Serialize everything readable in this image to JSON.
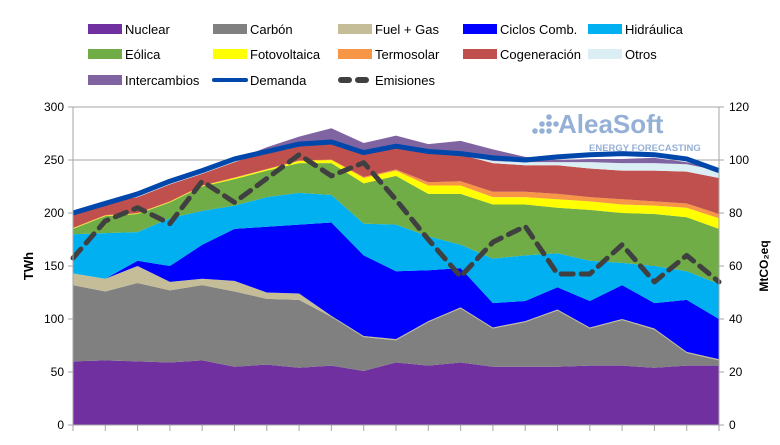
{
  "chart_data": {
    "type": "area",
    "stacked": true,
    "title": "",
    "ylabel": "TWh",
    "y2label": "MtCO₂eq",
    "ylim": [
      0,
      300
    ],
    "y2lim": [
      0,
      120
    ],
    "yticks": [
      "0",
      "50",
      "100",
      "150",
      "200",
      "250",
      "300"
    ],
    "y2ticks": [
      "0",
      "20",
      "40",
      "60",
      "80",
      "100",
      "120"
    ],
    "grid": true,
    "legend_position": "top",
    "point_count": 21,
    "series": [
      {
        "name": "Nuclear",
        "color": "#7030a0",
        "values": [
          60,
          61,
          60,
          59,
          61,
          55,
          57,
          54,
          56,
          51,
          59,
          56,
          59,
          55,
          55,
          55,
          56,
          56,
          54,
          56,
          56
        ]
      },
      {
        "name": "Carbón",
        "color": "#808080",
        "values": [
          72,
          65,
          74,
          68,
          71,
          71,
          62,
          64,
          46,
          32,
          21,
          41,
          51,
          36,
          42,
          53,
          35,
          43,
          36,
          12,
          5
        ]
      },
      {
        "name": "Fuel + Gas",
        "color": "#c4bd97",
        "values": [
          11,
          12,
          16,
          8,
          6,
          10,
          6,
          6,
          1,
          1,
          1,
          1,
          1,
          1,
          1,
          1,
          1,
          1,
          1,
          1,
          1
        ]
      },
      {
        "name": "Ciclos Comb.",
        "color": "#0000ff",
        "values": [
          0,
          0,
          5,
          15,
          32,
          49,
          62,
          65,
          88,
          76,
          64,
          48,
          37,
          23,
          19,
          21,
          25,
          32,
          24,
          49,
          38
        ]
      },
      {
        "name": "Hidráulica",
        "color": "#00b0f0",
        "values": [
          37,
          43,
          27,
          45,
          32,
          22,
          28,
          30,
          26,
          30,
          44,
          32,
          22,
          42,
          43,
          32,
          38,
          21,
          35,
          27,
          33
        ]
      },
      {
        "name": "Eólica",
        "color": "#70ad47",
        "values": [
          5,
          16,
          17,
          15,
          23,
          25,
          25,
          28,
          30,
          38,
          46,
          40,
          48,
          51,
          48,
          43,
          48,
          47,
          49,
          51,
          52
        ]
      },
      {
        "name": "Fotovoltaica",
        "color": "#ffff00",
        "values": [
          0.5,
          0.5,
          0.5,
          0.5,
          0.5,
          1,
          1,
          2,
          3,
          5,
          5,
          8,
          8,
          7,
          7,
          8,
          8,
          8,
          8,
          9,
          10
        ]
      },
      {
        "name": "Termosolar",
        "color": "#f79646",
        "values": [
          0.5,
          0.5,
          0.5,
          0.5,
          0.5,
          0.5,
          0.5,
          0.5,
          0.5,
          1,
          1,
          3,
          4,
          5,
          5,
          5,
          4,
          5,
          4,
          4,
          4
        ]
      },
      {
        "name": "Cogeneración",
        "color": "#c0504d",
        "values": [
          14,
          12,
          15,
          16,
          11,
          14.5,
          16.5,
          14.5,
          14.5,
          22,
          20,
          27,
          25,
          27,
          25,
          27,
          27,
          27,
          29,
          30,
          34
        ]
      },
      {
        "name": "Otros",
        "color": "#daeef3",
        "values": [
          2,
          2,
          3,
          3,
          3,
          2,
          2,
          2,
          2,
          2,
          2,
          2,
          1,
          2,
          3,
          3,
          6,
          7,
          7,
          7,
          7
        ]
      },
      {
        "name": "Intercambios",
        "color": "#8064a2",
        "values": [
          0,
          0,
          0,
          0,
          0,
          0,
          2,
          6,
          13,
          8,
          10,
          7,
          12,
          11,
          5,
          2,
          3,
          4,
          5,
          2,
          1
        ]
      }
    ],
    "lines": [
      {
        "name": "Demanda",
        "color": "#0047ab",
        "axis": "left",
        "values": [
          200,
          209,
          218,
          230,
          240,
          251,
          258,
          265,
          267,
          257,
          263,
          258,
          256,
          252,
          250,
          253,
          255,
          256,
          255,
          251,
          240
        ]
      },
      {
        "name": "Emisiones",
        "color": "#404040",
        "axis": "right",
        "dashed": true,
        "values": [
          63,
          77,
          82,
          76,
          92,
          84,
          93,
          102,
          94,
          99,
          85,
          70,
          56,
          69,
          75,
          57,
          57,
          68,
          54,
          64,
          54
        ]
      }
    ]
  },
  "logo": {
    "name": "AleaSoft",
    "tagline": "ENERGY FORECASTING"
  }
}
